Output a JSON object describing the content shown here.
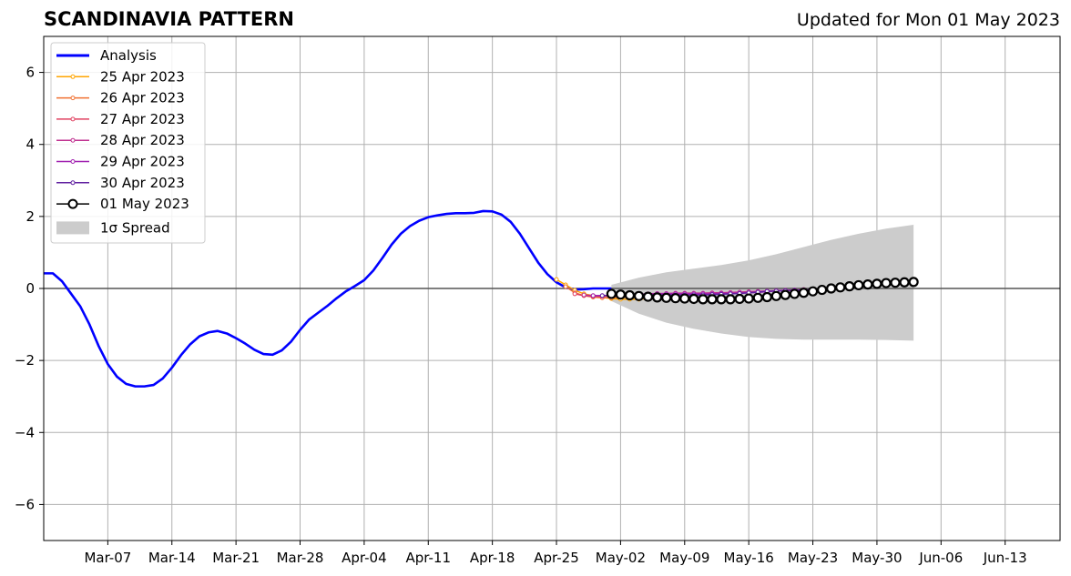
{
  "header": {
    "title": "SCANDINAVIA PATTERN",
    "updated": "Updated for Mon 01 May 2023"
  },
  "chart_data": {
    "type": "line",
    "x_start": "2023-03-01",
    "xlim": [
      "2023-02-28",
      "2023-06-19"
    ],
    "ylim": [
      -7,
      7
    ],
    "yticks": [
      -6,
      -4,
      -2,
      0,
      2,
      4,
      6
    ],
    "ytick_labels": [
      "−6",
      "−4",
      "−2",
      "0",
      "2",
      "4",
      "6"
    ],
    "xticks": [
      "2023-03-07",
      "2023-03-14",
      "2023-03-21",
      "2023-03-28",
      "2023-04-04",
      "2023-04-11",
      "2023-04-18",
      "2023-04-25",
      "2023-05-02",
      "2023-05-09",
      "2023-05-16",
      "2023-05-23",
      "2023-05-30",
      "2023-06-06",
      "2023-06-13"
    ],
    "xtick_labels": [
      "Mar-07",
      "Mar-14",
      "Mar-21",
      "Mar-28",
      "Apr-04",
      "Apr-11",
      "Apr-18",
      "Apr-25",
      "May-02",
      "May-09",
      "May-16",
      "May-23",
      "May-30",
      "Jun-06",
      "Jun-13"
    ],
    "grid": true,
    "legend_position": "top-left",
    "analysis": {
      "name": "Analysis",
      "color": "#0000ff",
      "x": [
        "2023-02-28",
        "2023-03-01",
        "2023-03-02",
        "2023-03-03",
        "2023-03-04",
        "2023-03-05",
        "2023-03-06",
        "2023-03-07",
        "2023-03-08",
        "2023-03-09",
        "2023-03-10",
        "2023-03-11",
        "2023-03-12",
        "2023-03-13",
        "2023-03-14",
        "2023-03-15",
        "2023-03-16",
        "2023-03-17",
        "2023-03-18",
        "2023-03-19",
        "2023-03-20",
        "2023-03-21",
        "2023-03-22",
        "2023-03-23",
        "2023-03-24",
        "2023-03-25",
        "2023-03-26",
        "2023-03-27",
        "2023-03-28",
        "2023-03-29",
        "2023-03-30",
        "2023-03-31",
        "2023-04-01",
        "2023-04-02",
        "2023-04-03",
        "2023-04-04",
        "2023-04-05",
        "2023-04-06",
        "2023-04-07",
        "2023-04-08",
        "2023-04-09",
        "2023-04-10",
        "2023-04-11",
        "2023-04-12",
        "2023-04-13",
        "2023-04-14",
        "2023-04-15",
        "2023-04-16",
        "2023-04-17",
        "2023-04-18",
        "2023-04-19",
        "2023-04-20",
        "2023-04-21",
        "2023-04-22",
        "2023-04-23",
        "2023-04-24",
        "2023-04-25",
        "2023-04-26",
        "2023-04-27",
        "2023-04-28",
        "2023-04-29",
        "2023-04-30",
        "2023-05-01"
      ],
      "y": [
        0.42,
        0.42,
        0.2,
        -0.15,
        -0.5,
        -1.0,
        -1.6,
        -2.1,
        -2.45,
        -2.65,
        -2.72,
        -2.72,
        -2.68,
        -2.5,
        -2.2,
        -1.85,
        -1.55,
        -1.33,
        -1.22,
        -1.18,
        -1.25,
        -1.38,
        -1.53,
        -1.7,
        -1.82,
        -1.84,
        -1.72,
        -1.48,
        -1.15,
        -0.86,
        -0.67,
        -0.48,
        -0.27,
        -0.08,
        0.07,
        0.23,
        0.5,
        0.85,
        1.22,
        1.52,
        1.73,
        1.88,
        1.98,
        2.03,
        2.07,
        2.09,
        2.09,
        2.1,
        2.15,
        2.14,
        2.05,
        1.85,
        1.52,
        1.12,
        0.72,
        0.4,
        0.17,
        0.03,
        -0.03,
        -0.02,
        0.0,
        0.0,
        0.0
      ]
    },
    "forecasts": [
      {
        "name": "25 Apr 2023",
        "color": "#ffa500",
        "x": [
          "2023-04-25",
          "2023-04-26",
          "2023-04-27",
          "2023-04-28",
          "2023-04-29",
          "2023-04-30",
          "2023-05-01",
          "2023-05-02",
          "2023-05-03",
          "2023-05-04",
          "2023-05-05",
          "2023-05-06"
        ],
        "y": [
          0.25,
          0.1,
          -0.05,
          -0.15,
          -0.2,
          -0.25,
          -0.28,
          -0.3,
          -0.3,
          -0.3,
          -0.28,
          -0.25
        ]
      },
      {
        "name": "26 Apr 2023",
        "color": "#f07030",
        "x": [
          "2023-04-26",
          "2023-04-27",
          "2023-04-28",
          "2023-04-29",
          "2023-04-30",
          "2023-05-01",
          "2023-05-02",
          "2023-05-03",
          "2023-05-04",
          "2023-05-05",
          "2023-05-06"
        ],
        "y": [
          0.05,
          -0.12,
          -0.2,
          -0.24,
          -0.26,
          -0.26,
          -0.25,
          -0.24,
          -0.22,
          -0.2,
          -0.2
        ]
      },
      {
        "name": "27 Apr 2023",
        "color": "#e04060",
        "x": [
          "2023-04-27",
          "2023-04-28",
          "2023-04-29",
          "2023-04-30",
          "2023-05-01",
          "2023-05-02",
          "2023-05-03",
          "2023-05-04",
          "2023-05-05"
        ],
        "y": [
          -0.15,
          -0.2,
          -0.22,
          -0.22,
          -0.21,
          -0.2,
          -0.19,
          -0.18,
          -0.18
        ]
      },
      {
        "name": "28 Apr 2023",
        "color": "#c03090",
        "x": [
          "2023-04-28",
          "2023-04-29",
          "2023-04-30",
          "2023-05-01",
          "2023-05-02",
          "2023-05-03",
          "2023-05-04",
          "2023-05-05",
          "2023-05-06",
          "2023-05-07",
          "2023-05-08",
          "2023-05-09",
          "2023-05-10",
          "2023-05-11",
          "2023-05-12",
          "2023-05-13",
          "2023-05-14",
          "2023-05-15",
          "2023-05-16",
          "2023-05-17",
          "2023-05-18",
          "2023-05-19",
          "2023-05-20",
          "2023-05-21",
          "2023-05-22"
        ],
        "y": [
          -0.18,
          -0.2,
          -0.2,
          -0.19,
          -0.18,
          -0.17,
          -0.16,
          -0.15,
          -0.14,
          -0.14,
          -0.13,
          -0.13,
          -0.13,
          -0.13,
          -0.12,
          -0.12,
          -0.11,
          -0.1,
          -0.09,
          -0.08,
          -0.07,
          -0.06,
          -0.05,
          -0.04,
          -0.03
        ]
      },
      {
        "name": "29 Apr 2023",
        "color": "#a020b0",
        "x": [
          "2023-04-29",
          "2023-04-30",
          "2023-05-01",
          "2023-05-02",
          "2023-05-03",
          "2023-05-04",
          "2023-05-05",
          "2023-05-06",
          "2023-05-07",
          "2023-05-08",
          "2023-05-09",
          "2023-05-10",
          "2023-05-11",
          "2023-05-12",
          "2023-05-13",
          "2023-05-14",
          "2023-05-15",
          "2023-05-16",
          "2023-05-17",
          "2023-05-18",
          "2023-05-19",
          "2023-05-20",
          "2023-05-21",
          "2023-05-22",
          "2023-05-23"
        ],
        "y": [
          -0.2,
          -0.2,
          -0.19,
          -0.18,
          -0.17,
          -0.16,
          -0.16,
          -0.15,
          -0.15,
          -0.15,
          -0.15,
          -0.15,
          -0.15,
          -0.15,
          -0.14,
          -0.14,
          -0.13,
          -0.12,
          -0.11,
          -0.09,
          -0.07,
          -0.06,
          -0.05,
          -0.04,
          -0.03
        ]
      },
      {
        "name": "30 Apr 2023",
        "color": "#6020a0",
        "x": [
          "2023-04-30",
          "2023-05-01",
          "2023-05-02",
          "2023-05-03",
          "2023-05-04",
          "2023-05-05",
          "2023-05-06",
          "2023-05-07",
          "2023-05-08",
          "2023-05-09",
          "2023-05-10",
          "2023-05-11",
          "2023-05-12",
          "2023-05-13",
          "2023-05-14",
          "2023-05-15",
          "2023-05-16",
          "2023-05-17",
          "2023-05-18",
          "2023-05-19",
          "2023-05-20",
          "2023-05-21",
          "2023-05-22",
          "2023-05-23"
        ],
        "y": [
          -0.2,
          -0.2,
          -0.19,
          -0.18,
          -0.18,
          -0.18,
          -0.18,
          -0.18,
          -0.18,
          -0.18,
          -0.18,
          -0.18,
          -0.17,
          -0.16,
          -0.15,
          -0.14,
          -0.12,
          -0.1,
          -0.08,
          -0.07,
          -0.06,
          -0.05,
          -0.04,
          -0.03
        ]
      }
    ],
    "current_forecast": {
      "name": "01 May 2023",
      "color": "#000000",
      "x": [
        "2023-05-01",
        "2023-05-02",
        "2023-05-03",
        "2023-05-04",
        "2023-05-05",
        "2023-05-06",
        "2023-05-07",
        "2023-05-08",
        "2023-05-09",
        "2023-05-10",
        "2023-05-11",
        "2023-05-12",
        "2023-05-13",
        "2023-05-14",
        "2023-05-15",
        "2023-05-16",
        "2023-05-17",
        "2023-05-18",
        "2023-05-19",
        "2023-05-20",
        "2023-05-21",
        "2023-05-22",
        "2023-05-23",
        "2023-05-24",
        "2023-05-25",
        "2023-05-26",
        "2023-05-27",
        "2023-05-28",
        "2023-05-29",
        "2023-05-30",
        "2023-05-31",
        "2023-06-01",
        "2023-06-02",
        "2023-06-03"
      ],
      "y": [
        -0.15,
        -0.17,
        -0.19,
        -0.21,
        -0.23,
        -0.25,
        -0.26,
        -0.27,
        -0.28,
        -0.29,
        -0.3,
        -0.3,
        -0.3,
        -0.3,
        -0.29,
        -0.28,
        -0.26,
        -0.24,
        -0.21,
        -0.18,
        -0.15,
        -0.12,
        -0.08,
        -0.04,
        0.0,
        0.03,
        0.06,
        0.09,
        0.11,
        0.13,
        0.15,
        0.16,
        0.17,
        0.18
      ]
    },
    "spread": {
      "name": "1σ Spread",
      "color": "#cccccc",
      "x": [
        "2023-05-01",
        "2023-05-04",
        "2023-05-07",
        "2023-05-10",
        "2023-05-13",
        "2023-05-16",
        "2023-05-19",
        "2023-05-22",
        "2023-05-25",
        "2023-05-28",
        "2023-05-31",
        "2023-06-03"
      ],
      "upper": [
        0.1,
        0.3,
        0.45,
        0.55,
        0.65,
        0.78,
        0.95,
        1.15,
        1.35,
        1.52,
        1.66,
        1.77
      ],
      "lower": [
        -0.35,
        -0.7,
        -0.95,
        -1.12,
        -1.25,
        -1.35,
        -1.4,
        -1.42,
        -1.42,
        -1.42,
        -1.43,
        -1.45
      ]
    }
  }
}
